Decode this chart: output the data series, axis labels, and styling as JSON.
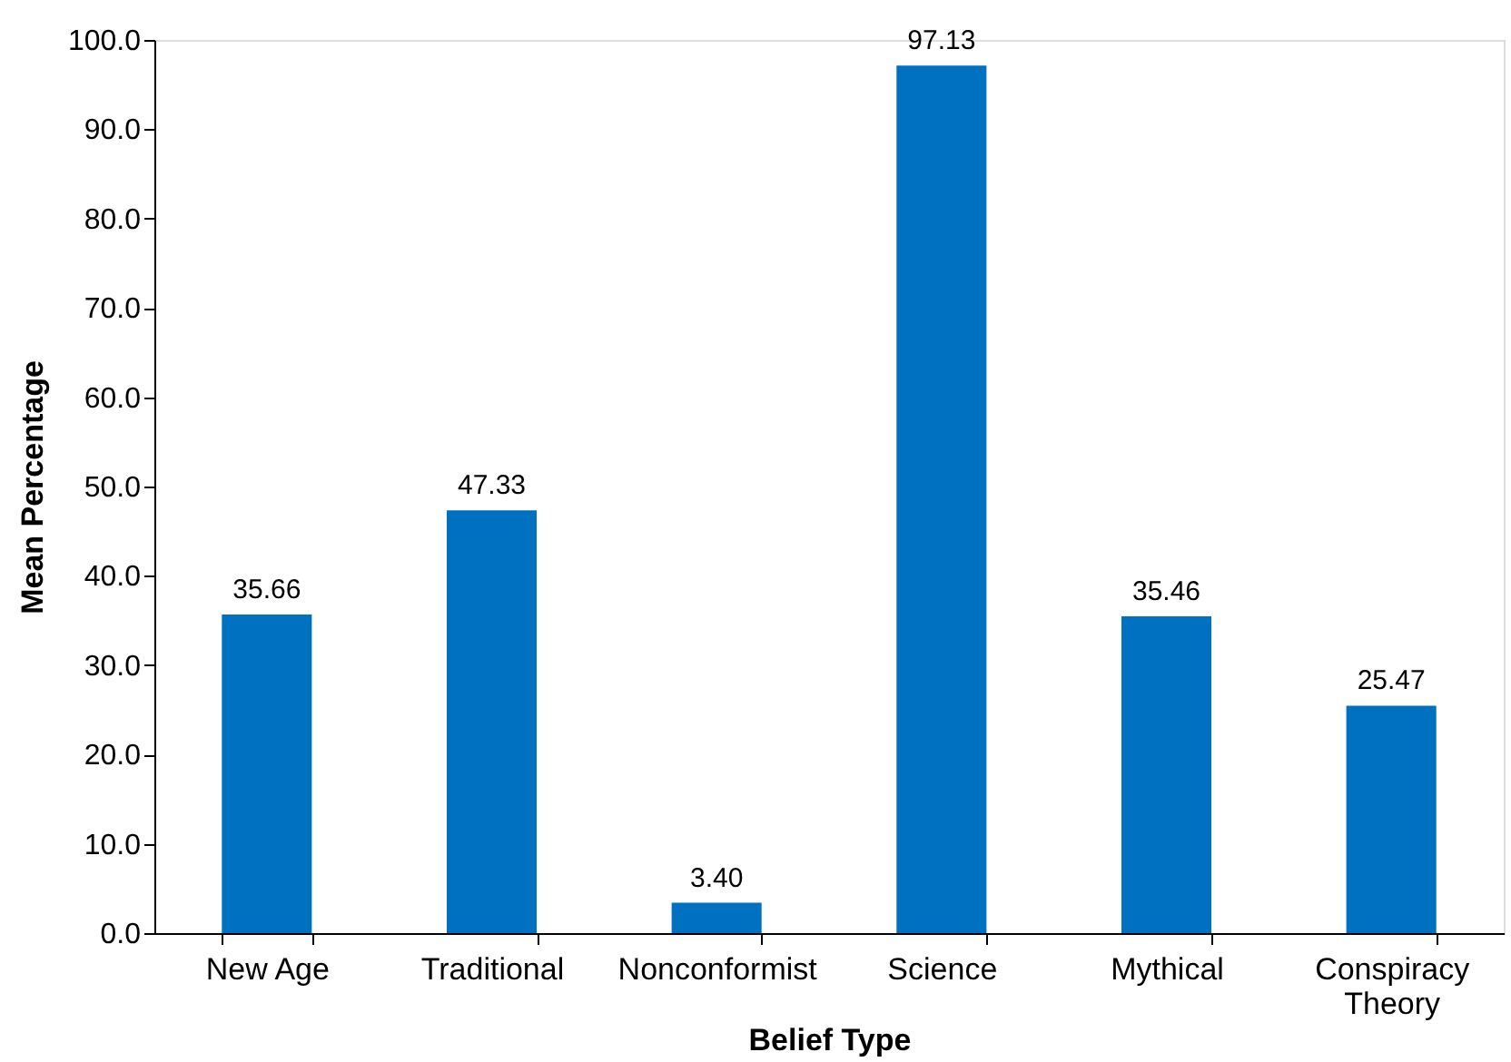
{
  "chart_data": {
    "type": "bar",
    "xlabel": "Belief Type",
    "ylabel": "Mean Percentage",
    "categories": [
      "New Age",
      "Traditional",
      "Nonconformist",
      "Science",
      "Mythical",
      "Conspiracy Theory"
    ],
    "values": [
      35.66,
      47.33,
      3.4,
      97.13,
      35.46,
      25.47
    ],
    "value_labels": [
      "35.66",
      "47.33",
      "3.40",
      "97.13",
      "35.46",
      "25.47"
    ],
    "color": "#0070c0",
    "ylim": [
      0,
      100
    ],
    "yticks": [
      {
        "value": 0,
        "label": "0.0"
      },
      {
        "value": 10,
        "label": "10.0"
      },
      {
        "value": 20,
        "label": "20.0"
      },
      {
        "value": 30,
        "label": "30.0"
      },
      {
        "value": 40,
        "label": "40.0"
      },
      {
        "value": 50,
        "label": "50.0"
      },
      {
        "value": 60,
        "label": "60.0"
      },
      {
        "value": 70,
        "label": "70.0"
      },
      {
        "value": 80,
        "label": "80.0"
      },
      {
        "value": 90,
        "label": "90.0"
      },
      {
        "value": 100,
        "label": "100.0"
      }
    ]
  }
}
